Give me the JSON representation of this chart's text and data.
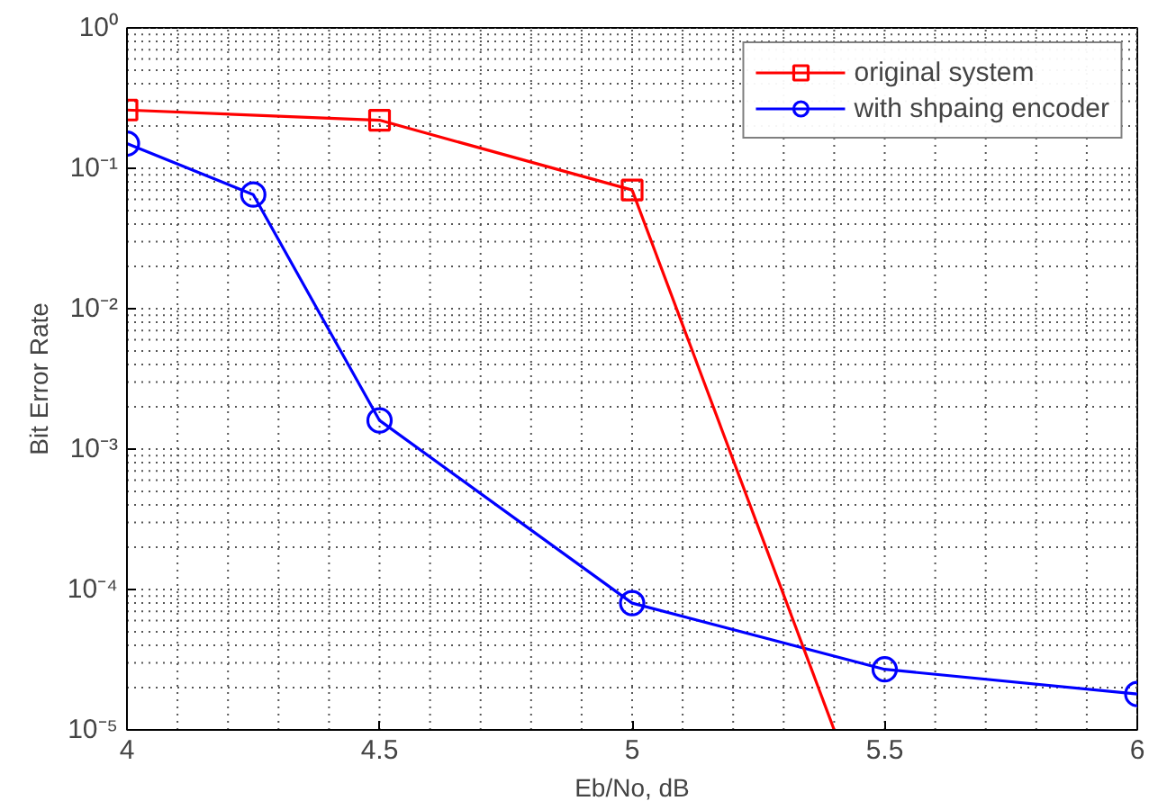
{
  "chart_data": {
    "type": "line",
    "xlabel": "Eb/No, dB",
    "ylabel": "Bit Error Rate",
    "log": "y",
    "grid": true,
    "legend": "top right",
    "line_style": "solid",
    "xlim": [
      4,
      6
    ],
    "xticks": [
      4,
      4.5,
      5,
      5.5,
      6
    ],
    "ylim": [
      1e-05,
      1
    ],
    "yticks": [
      {
        "value": 1e-05,
        "label": "10⁻⁵"
      },
      {
        "value": 0.0001,
        "label": "10⁻⁴"
      },
      {
        "value": 0.001,
        "label": "10⁻³"
      },
      {
        "value": 0.01,
        "label": "10⁻²"
      },
      {
        "value": 0.1,
        "label": "10⁻¹"
      },
      {
        "value": 1,
        "label": "10⁰"
      }
    ],
    "series": [
      {
        "name": "original system",
        "color": "#ff0000",
        "marker": "square",
        "x": [
          4,
          4.5,
          5
        ],
        "values": [
          0.26,
          0.22,
          0.07
        ]
      },
      {
        "name": "with shpaing encoder",
        "color": "#0000ff",
        "marker": "circle",
        "x": [
          4,
          4.25,
          4.5,
          5,
          5.5,
          6
        ],
        "values": [
          0.15,
          0.065,
          0.0016,
          8e-05,
          2.7e-05,
          1.8e-05
        ]
      },
      {
        "color": "#ff0000",
        "marker": "none",
        "x": [
          5,
          5.4
        ],
        "values": [
          0.07,
          1e-05
        ]
      }
    ]
  }
}
